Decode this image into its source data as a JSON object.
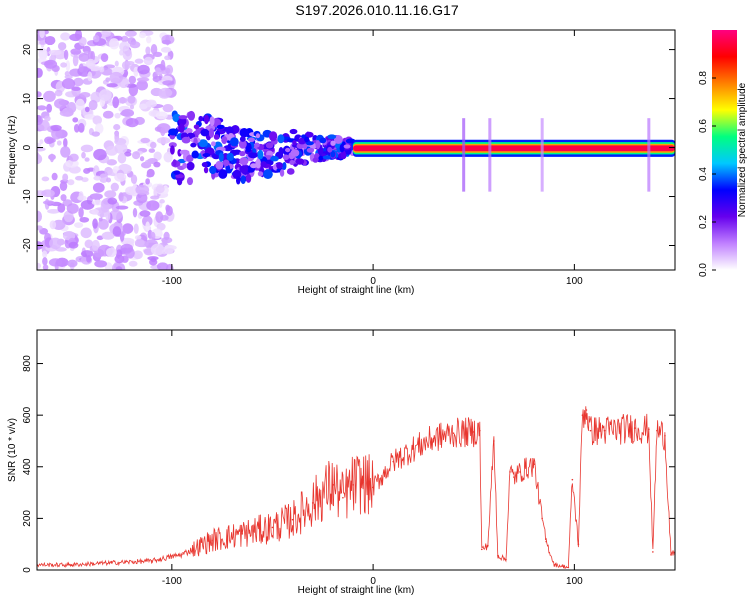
{
  "title": "S197.2026.010.11.16.G17",
  "colors": {
    "snr_line": "#e8362f",
    "frame": "#000000",
    "background": "#ffffff"
  },
  "chart_data": [
    {
      "type": "heatmap",
      "name": "spectrogram",
      "xlabel": "Height of straight line (km)",
      "ylabel": "Frequency (Hz)",
      "xlim": [
        -167,
        150
      ],
      "ylim": [
        -25,
        24
      ],
      "xticks": [
        -100,
        0,
        100
      ],
      "yticks": [
        -20,
        -10,
        0,
        10,
        20
      ],
      "colorbar": {
        "label": "Normalized spectral amplitude",
        "range": [
          0,
          1
        ],
        "ticks": [
          0.0,
          0.2,
          0.4,
          0.6,
          0.8
        ],
        "colormap": [
          "#ffffff",
          "#c080ff",
          "#6600ee",
          "#0000ff",
          "#00c8ff",
          "#00ff80",
          "#ffff00",
          "#ff8000",
          "#ff0000",
          "#ff0080"
        ]
      },
      "description_segments": [
        {
          "x_range": [
            -167,
            -100
          ],
          "pattern": "scattered noise",
          "amplitude": [
            0.02,
            0.12
          ]
        },
        {
          "x_range": [
            -100,
            -10
          ],
          "pattern": "band near 0 Hz",
          "amplitude": [
            0.1,
            0.4
          ]
        },
        {
          "x_range": [
            -10,
            150
          ],
          "pattern": "narrow line near 0 Hz",
          "amplitude": [
            0.5,
            1.0
          ]
        }
      ]
    },
    {
      "type": "line",
      "name": "snr",
      "xlabel": "Height of straight line (km)",
      "ylabel": "SNR (10 * v/v)",
      "xlim": [
        -167,
        150
      ],
      "ylim": [
        0,
        930
      ],
      "xticks": [
        -100,
        0,
        100
      ],
      "yticks": [
        0,
        200,
        400,
        600,
        800
      ],
      "series": [
        {
          "name": "SNR",
          "x": [
            -167,
            -150,
            -130,
            -110,
            -95,
            -80,
            -65,
            -50,
            -40,
            -30,
            -20,
            -15,
            -10,
            -5,
            0,
            10,
            20,
            30,
            40,
            50,
            53,
            54,
            57,
            60,
            62,
            66,
            68,
            70,
            73,
            80,
            84,
            86,
            90,
            94,
            97,
            99,
            102,
            104,
            106,
            108,
            115,
            130,
            137,
            139,
            141,
            145,
            148,
            150
          ],
          "values": [
            20,
            20,
            28,
            35,
            60,
            115,
            140,
            165,
            195,
            260,
            330,
            280,
            330,
            340,
            320,
            420,
            470,
            510,
            530,
            535,
            540,
            80,
            95,
            500,
            55,
            40,
            380,
            360,
            380,
            410,
            200,
            110,
            20,
            15,
            10,
            350,
            100,
            600,
            620,
            540,
            540,
            550,
            545,
            70,
            540,
            520,
            60,
            60
          ]
        }
      ]
    }
  ]
}
